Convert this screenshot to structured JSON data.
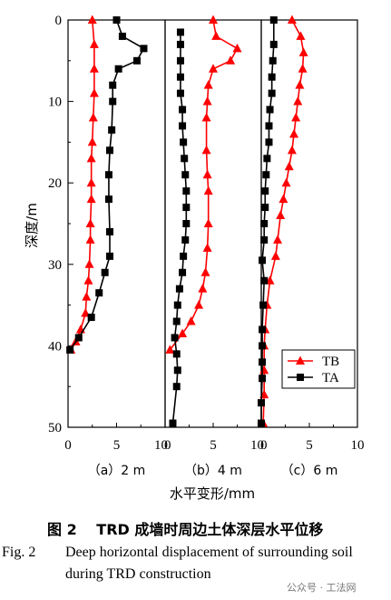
{
  "chart_data": {
    "type": "line",
    "panels": [
      {
        "label": "（a）2 m",
        "x_ticks": [
          "0",
          "5",
          "10"
        ],
        "series": [
          {
            "name": "TB",
            "color": "#ff0000",
            "marker": "triangle",
            "points": [
              [
                2.5,
                0
              ],
              [
                2.7,
                3
              ],
              [
                2.7,
                6
              ],
              [
                2.7,
                9
              ],
              [
                2.6,
                12
              ],
              [
                2.5,
                15
              ],
              [
                2.4,
                17
              ],
              [
                2.4,
                20
              ],
              [
                2.4,
                22
              ],
              [
                2.3,
                25
              ],
              [
                2.3,
                27
              ],
              [
                2.2,
                30
              ],
              [
                2.1,
                32
              ],
              [
                1.9,
                34
              ],
              [
                1.8,
                36
              ],
              [
                1.3,
                38
              ],
              [
                0.8,
                39.5
              ],
              [
                0.3,
                40.5
              ]
            ]
          },
          {
            "name": "TA",
            "color": "#000000",
            "marker": "square",
            "points": [
              [
                5.0,
                0
              ],
              [
                5.6,
                2
              ],
              [
                7.8,
                3.5
              ],
              [
                7.1,
                5
              ],
              [
                5.2,
                6
              ],
              [
                4.6,
                8
              ],
              [
                4.6,
                10
              ],
              [
                4.5,
                13.5
              ],
              [
                4.3,
                16
              ],
              [
                4.2,
                19
              ],
              [
                4.2,
                22
              ],
              [
                4.3,
                26
              ],
              [
                4.3,
                29
              ],
              [
                3.8,
                31
              ],
              [
                3.2,
                33.5
              ],
              [
                2.4,
                36.5
              ],
              [
                1.1,
                39
              ],
              [
                0.2,
                40.5
              ]
            ]
          }
        ]
      },
      {
        "label": "（b）4 m",
        "x_ticks": [
          "0",
          "5",
          "10"
        ],
        "series": [
          {
            "name": "TB",
            "color": "#ff0000",
            "marker": "triangle",
            "points": [
              [
                5.0,
                0
              ],
              [
                5.3,
                2
              ],
              [
                7.5,
                3.5
              ],
              [
                6.8,
                5
              ],
              [
                5.0,
                6
              ],
              [
                4.5,
                8
              ],
              [
                4.4,
                10
              ],
              [
                4.3,
                12
              ],
              [
                4.3,
                16
              ],
              [
                4.4,
                19
              ],
              [
                4.5,
                21
              ],
              [
                4.5,
                25
              ],
              [
                4.4,
                28
              ],
              [
                4.2,
                31
              ],
              [
                3.9,
                33
              ],
              [
                3.5,
                35
              ],
              [
                2.7,
                37
              ],
              [
                1.8,
                38.5
              ],
              [
                0.5,
                40.5
              ]
            ]
          },
          {
            "name": "TA",
            "color": "#000000",
            "marker": "square",
            "points": [
              [
                1.6,
                1.5
              ],
              [
                1.6,
                3
              ],
              [
                1.6,
                5
              ],
              [
                1.6,
                7
              ],
              [
                1.6,
                9
              ],
              [
                1.8,
                11
              ],
              [
                1.8,
                13
              ],
              [
                1.9,
                15
              ],
              [
                2.0,
                17
              ],
              [
                2.1,
                19
              ],
              [
                2.2,
                21
              ],
              [
                2.2,
                23
              ],
              [
                2.2,
                25
              ],
              [
                2.1,
                27
              ],
              [
                1.9,
                29
              ],
              [
                1.8,
                31
              ],
              [
                1.5,
                33
              ],
              [
                1.3,
                35
              ],
              [
                1.2,
                37
              ],
              [
                1.0,
                39
              ],
              [
                1.2,
                41
              ],
              [
                1.3,
                43
              ],
              [
                1.2,
                45
              ],
              [
                0.8,
                49.5
              ]
            ]
          }
        ]
      },
      {
        "label": "（c）6 m",
        "x_ticks": [
          "0",
          "5",
          "10"
        ],
        "series": [
          {
            "name": "TB",
            "color": "#ff0000",
            "marker": "triangle",
            "points": [
              [
                3.2,
                0
              ],
              [
                4.1,
                2
              ],
              [
                4.4,
                4
              ],
              [
                4.3,
                6
              ],
              [
                4.0,
                8
              ],
              [
                3.8,
                10
              ],
              [
                3.6,
                12
              ],
              [
                3.4,
                14
              ],
              [
                3.2,
                16
              ],
              [
                2.9,
                18
              ],
              [
                2.6,
                20
              ],
              [
                2.3,
                22
              ],
              [
                2.0,
                24
              ],
              [
                1.7,
                27
              ],
              [
                1.5,
                29
              ],
              [
                0.9,
                32
              ],
              [
                0.6,
                35
              ],
              [
                0.4,
                38
              ],
              [
                0.3,
                40
              ],
              [
                0.3,
                43
              ],
              [
                0.3,
                46
              ],
              [
                0.2,
                49.5
              ]
            ]
          },
          {
            "name": "TA",
            "color": "#000000",
            "marker": "square",
            "points": [
              [
                1.3,
                0
              ],
              [
                1.3,
                3
              ],
              [
                1.2,
                5
              ],
              [
                1.1,
                7
              ],
              [
                1.1,
                9
              ],
              [
                0.9,
                11
              ],
              [
                0.8,
                13
              ],
              [
                0.8,
                15
              ],
              [
                0.6,
                17
              ],
              [
                0.5,
                19
              ],
              [
                0.4,
                21
              ],
              [
                0.4,
                23
              ],
              [
                0.3,
                25
              ],
              [
                0.3,
                27
              ],
              [
                0.1,
                29.5
              ],
              [
                0.3,
                32
              ],
              [
                0.2,
                35
              ],
              [
                0.1,
                38
              ],
              [
                0.1,
                40
              ],
              [
                0.1,
                42
              ],
              [
                0.1,
                44
              ],
              [
                0.0,
                47
              ],
              [
                0.0,
                49.5
              ]
            ]
          }
        ]
      }
    ],
    "ylabel": "深度/m",
    "xlabel": "水平变形/mm",
    "y_ticks": [
      "0",
      "10",
      "20",
      "30",
      "40",
      "50"
    ],
    "ylim": [
      0,
      50
    ],
    "xlim": [
      0,
      10
    ],
    "y_inverted": true,
    "legend": {
      "position": "bottom-right",
      "entries": [
        "TB",
        "TA"
      ]
    }
  },
  "caption": {
    "cn": "图 2　 TRD 成墙时周边土体深层水平位移",
    "en_label": "Fig. 2",
    "en_line1": "Deep horizontal displacement of surrounding soil",
    "en_line2": "during TRD construction"
  },
  "watermark": "公众号 · 工法网"
}
